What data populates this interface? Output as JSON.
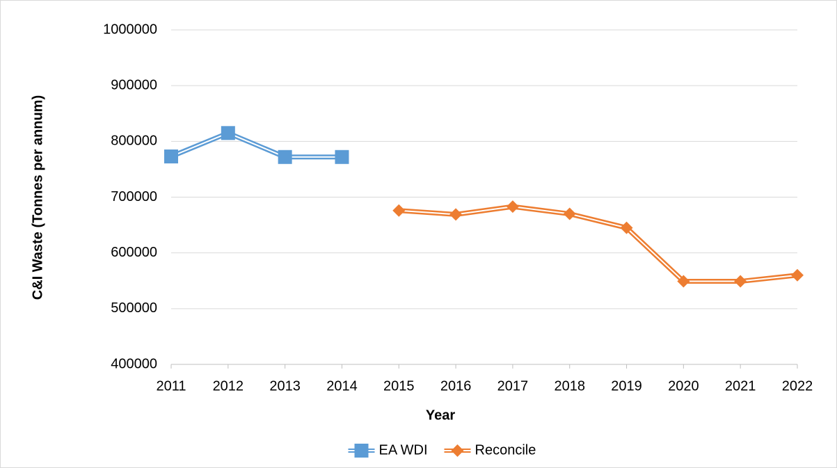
{
  "chart_data": {
    "type": "line",
    "x_label": "Year",
    "y_label": "C&I Waste (Tonnes per annum)",
    "categories": [
      "2011",
      "2012",
      "2013",
      "2014",
      "2015",
      "2016",
      "2017",
      "2018",
      "2019",
      "2020",
      "2021",
      "2022"
    ],
    "series": [
      {
        "name": "EA WDI",
        "color": "#5b9bd5",
        "marker": "square",
        "values": [
          773000,
          815000,
          772000,
          772000,
          null,
          null,
          null,
          null,
          null,
          null,
          null,
          null
        ]
      },
      {
        "name": "Reconcile",
        "color": "#ed7d31",
        "marker": "diamond",
        "values": [
          null,
          null,
          null,
          null,
          676000,
          669000,
          683000,
          670000,
          645000,
          549000,
          549000,
          560000
        ]
      }
    ],
    "ylim": [
      400000,
      1000000
    ],
    "yticks": [
      400000,
      500000,
      600000,
      700000,
      800000,
      900000,
      1000000
    ],
    "grid": true,
    "legend": "bottom"
  }
}
